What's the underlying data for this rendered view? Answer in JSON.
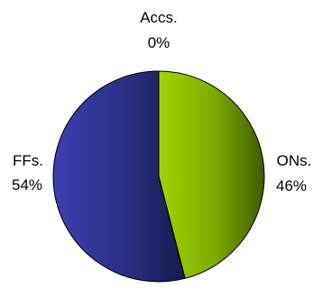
{
  "chart_data": {
    "type": "pie",
    "title": "",
    "slices": [
      {
        "label": "ONs.",
        "value": 46,
        "percent_label": "46%",
        "color": "#8fbf00"
      },
      {
        "label": "FFs.",
        "value": 54,
        "percent_label": "54%",
        "color": "#2b2f8f"
      },
      {
        "label": "Accs.",
        "value": 0,
        "percent_label": "0%",
        "color": "#d8d8d8"
      }
    ],
    "start_angle_deg": 0,
    "direction": "clockwise",
    "legend": "none"
  }
}
